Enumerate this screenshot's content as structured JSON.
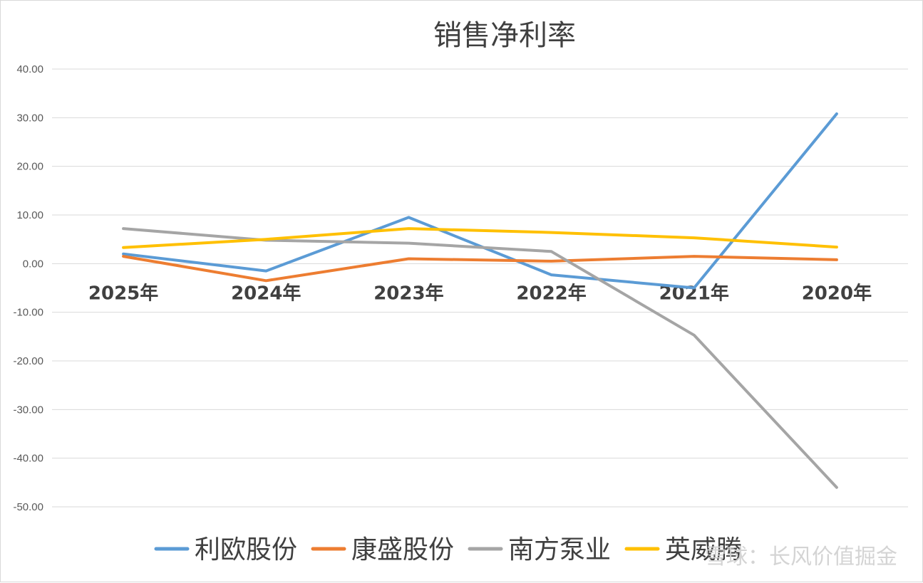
{
  "chart_data": {
    "type": "line",
    "title": "销售净利率",
    "categories": [
      "2025年",
      "2024年",
      "2023年",
      "2022年",
      "2021年",
      "2020年"
    ],
    "ylim": [
      -50,
      40
    ],
    "yticks": [
      40,
      30,
      20,
      10,
      0,
      -10,
      -20,
      -30,
      -40,
      -50
    ],
    "ytick_labels": [
      "40.00",
      "30.00",
      "20.00",
      "10.00",
      "0.00",
      "-10.00",
      "-20.00",
      "-30.00",
      "-40.00",
      "-50.00"
    ],
    "grid": true,
    "legend_position": "bottom",
    "series": [
      {
        "name": "利欧股份",
        "color": "#5b9bd5",
        "values": [
          2.0,
          -1.5,
          9.5,
          -2.3,
          -5.0,
          30.8
        ]
      },
      {
        "name": "康盛股份",
        "color": "#ed7d31",
        "values": [
          1.5,
          -3.5,
          1.0,
          0.5,
          1.5,
          0.8
        ]
      },
      {
        "name": "南方泵业",
        "color": "#a5a5a5",
        "values": [
          7.2,
          4.8,
          4.2,
          2.5,
          -14.7,
          -46.0
        ]
      },
      {
        "name": "英威腾",
        "color": "#ffc000",
        "values": [
          3.3,
          5.0,
          7.2,
          6.4,
          5.3,
          3.4
        ]
      }
    ]
  },
  "watermark": {
    "text": "雪球：长风价值掘金"
  }
}
